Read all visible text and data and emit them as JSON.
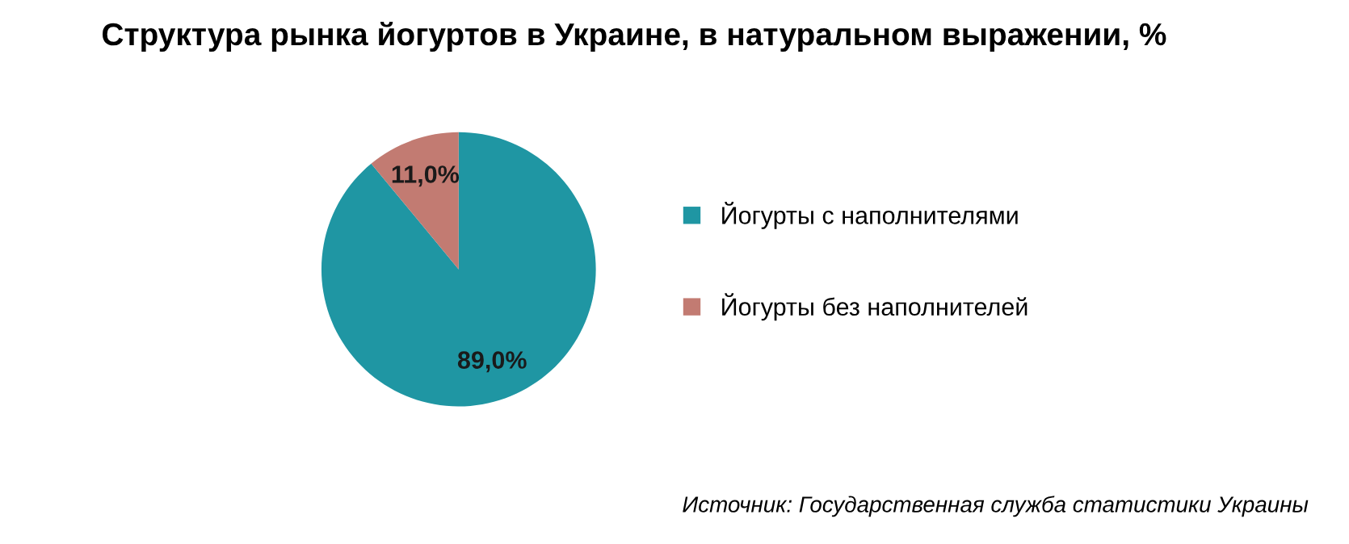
{
  "chart_data": {
    "type": "pie",
    "title": "Структура рынка йогуртов в Украине, в натуральном выражении, %",
    "categories": [
      "Йогурты с наполнителями",
      "Йогурты без наполнителей"
    ],
    "values": [
      89.0,
      11.0
    ],
    "colors": [
      "#1f96a3",
      "#c27b72"
    ],
    "value_labels": [
      "89,0%",
      "11,0%"
    ],
    "legend": "right",
    "annotations": [
      "Источник: Государственная служба статистики Украины"
    ]
  }
}
